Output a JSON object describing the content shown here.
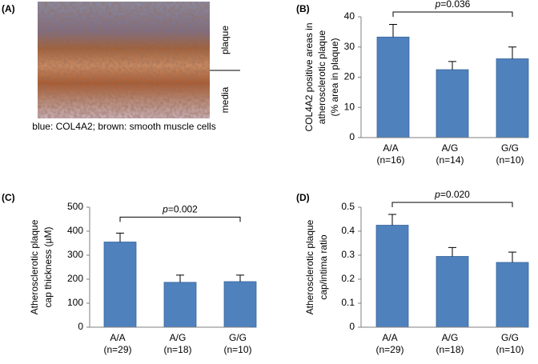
{
  "image_panel": {
    "panel_label": "(A)",
    "region_labels": [
      "plaque",
      "media"
    ],
    "caption": "blue: COL4A2; brown: smooth muscle cells"
  },
  "chart_data": [
    {
      "type": "bar",
      "panel_label": "(B)",
      "ylabel": [
        "COL4A2 positive areas in",
        "atherosclerotic plaque",
        "(% area in plaque)"
      ],
      "categories": [
        "A/A",
        "A/G",
        "G/G"
      ],
      "category_counts": [
        "(n=16)",
        "(n=14)",
        "(n=10)"
      ],
      "values": [
        33.3,
        22.5,
        26.1
      ],
      "errors": [
        4.2,
        2.7,
        3.9
      ],
      "color": "#4f81bd",
      "ylim": [
        0,
        40
      ],
      "yticks": [
        0,
        10,
        20,
        30,
        40
      ],
      "annotation": "p=0.036"
    },
    {
      "type": "bar",
      "panel_label": "(C)",
      "ylabel": [
        "Atherosclerotic plaque",
        "cap thickness (µM)"
      ],
      "categories": [
        "A/A",
        "A/G",
        "G/G"
      ],
      "category_counts": [
        "(n=29)",
        "(n=18)",
        "(n=10)"
      ],
      "values": [
        355,
        187,
        190
      ],
      "errors": [
        37,
        30,
        27
      ],
      "color": "#4f81bd",
      "ylim": [
        0,
        500
      ],
      "yticks": [
        0,
        100,
        200,
        300,
        400,
        500
      ],
      "annotation": "p=0.002"
    },
    {
      "type": "bar",
      "panel_label": "(D)",
      "ylabel": [
        "Atherosclerotic plaque",
        "cap/intima ratio"
      ],
      "categories": [
        "A/A",
        "A/G",
        "G/G"
      ],
      "category_counts": [
        "(n=29)",
        "(n=18)",
        "(n=10)"
      ],
      "values": [
        0.425,
        0.295,
        0.27
      ],
      "errors": [
        0.045,
        0.037,
        0.043
      ],
      "color": "#4f81bd",
      "ylim": [
        0,
        0.5
      ],
      "yticks": [
        0,
        0.1,
        0.2,
        0.3,
        0.4,
        0.5
      ],
      "annotation": "p=0.020"
    }
  ]
}
